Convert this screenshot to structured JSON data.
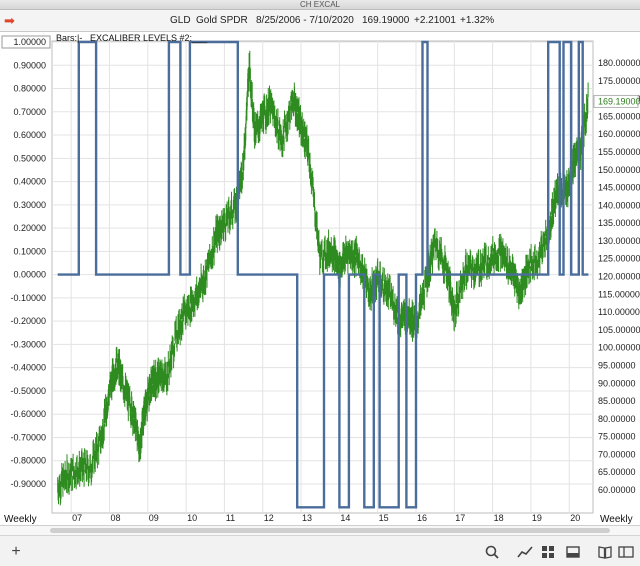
{
  "window": {
    "title": "CH EXCAL"
  },
  "header": {
    "symbol": "GLD",
    "name": "Gold SPDR",
    "date_range": "8/25/2006 - 7/10/2020",
    "last": "169.19000",
    "change": "+2.21001",
    "change_pct": "+1.32%"
  },
  "chart_header": {
    "bars_label": "Bars:|-",
    "indicator_label": "EXCALIBER LEVELS #2:___"
  },
  "footer": {
    "interval_left": "Weekly",
    "interval_right": "Weekly"
  },
  "colors": {
    "price": "#2e8b1f",
    "indicator": "#4a6d9c",
    "grid": "#e3e3e3",
    "last_price": "#2e7d1e"
  },
  "chart_data": {
    "type": "line",
    "left_axis": {
      "ticks": [
        "1.00000",
        "0.90000",
        "0.80000",
        "0.70000",
        "0.60000",
        "0.50000",
        "0.40000",
        "0.30000",
        "0.20000",
        "0.10000",
        "0.00000",
        "-0.10000",
        "-0.20000",
        "-0.30000",
        "-0.40000",
        "-0.50000",
        "-0.60000",
        "-0.70000",
        "-0.80000",
        "-0.90000"
      ],
      "range": [
        -1.0,
        1.0
      ]
    },
    "right_axis": {
      "ticks": [
        "180.00000",
        "175.00000",
        "170.00000",
        "165.00000",
        "160.00000",
        "155.00000",
        "150.00000",
        "145.00000",
        "140.00000",
        "135.00000",
        "130.00000",
        "125.00000",
        "120.00000",
        "115.00000",
        "110.00000",
        "105.00000",
        "100.00000",
        "95.00000",
        "90.00000",
        "85.00000",
        "80.00000",
        "75.00000",
        "70.00000",
        "65.00000",
        "60.00000"
      ],
      "last_value_label": "169.19000"
    },
    "x_ticks": [
      "07",
      "08",
      "09",
      "10",
      "11",
      "12",
      "13",
      "14",
      "15",
      "16",
      "17",
      "18",
      "19",
      "20"
    ],
    "series": [
      {
        "name": "GLD",
        "style": "price bars",
        "x": [
          2006.65,
          2006.9,
          2007.2,
          2007.5,
          2007.8,
          2008.0,
          2008.2,
          2008.4,
          2008.6,
          2008.8,
          2008.9,
          2009.1,
          2009.3,
          2009.5,
          2009.8,
          2010.0,
          2010.3,
          2010.5,
          2010.8,
          2011.0,
          2011.3,
          2011.5,
          2011.65,
          2011.8,
          2012.0,
          2012.2,
          2012.5,
          2012.8,
          2013.0,
          2013.2,
          2013.5,
          2013.8,
          2014.0,
          2014.2,
          2014.5,
          2014.8,
          2015.0,
          2015.3,
          2015.6,
          2015.8,
          2016.0,
          2016.3,
          2016.5,
          2016.8,
          2017.0,
          2017.3,
          2017.6,
          2017.9,
          2018.2,
          2018.5,
          2018.7,
          2018.9,
          2019.2,
          2019.5,
          2019.7,
          2019.9,
          2020.1,
          2020.3,
          2020.5
        ],
        "y": [
          61,
          64,
          66,
          66,
          75,
          88,
          96,
          88,
          82,
          72,
          82,
          90,
          92,
          92,
          106,
          110,
          115,
          120,
          132,
          135,
          140,
          152,
          180,
          160,
          165,
          168,
          158,
          170,
          162,
          155,
          125,
          128,
          122,
          127,
          125,
          115,
          120,
          115,
          108,
          110,
          106,
          120,
          130,
          122,
          110,
          122,
          122,
          125,
          127,
          122,
          115,
          122,
          125,
          135,
          145,
          143,
          152,
          155,
          170
        ]
      },
      {
        "name": "EXCALIBER LEVELS #2",
        "style": "step",
        "x": [
          2006.65,
          2007.2,
          2007.2,
          2007.65,
          2007.65,
          2009.55,
          2009.55,
          2009.85,
          2009.85,
          2010.1,
          2010.1,
          2011.35,
          2011.35,
          2012.9,
          2012.9,
          2013.6,
          2013.6,
          2014.0,
          2014.0,
          2014.25,
          2014.25,
          2014.65,
          2014.65,
          2014.9,
          2014.9,
          2015.05,
          2015.05,
          2015.55,
          2015.55,
          2015.75,
          2015.75,
          2016.0,
          2016.0,
          2016.17,
          2016.17,
          2016.3,
          2016.3,
          2019.45,
          2019.45,
          2019.75,
          2019.75,
          2019.85,
          2019.85,
          2020.05,
          2020.05,
          2020.25,
          2020.25,
          2020.35,
          2020.35,
          2020.5
        ],
        "y": [
          0,
          0,
          1,
          1,
          0,
          0,
          1,
          1,
          0,
          0,
          1,
          1,
          0,
          0,
          -1,
          -1,
          0,
          0,
          -1,
          -1,
          0,
          0,
          -1,
          -1,
          0,
          0,
          -1,
          -1,
          0,
          0,
          -1,
          -1,
          0,
          0,
          1,
          1,
          0,
          0,
          1,
          1,
          0,
          0,
          1,
          1,
          0,
          0,
          1,
          1,
          0,
          0
        ]
      }
    ]
  }
}
